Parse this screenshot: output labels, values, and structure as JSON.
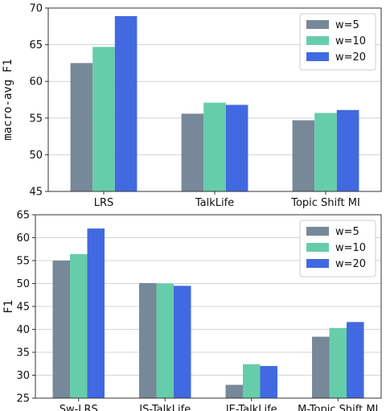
{
  "chart_data": [
    {
      "type": "bar",
      "categories": [
        "LRS",
        "TalkLife",
        "Topic Shift MI"
      ],
      "series": [
        {
          "name": "w=5",
          "color": "#778899",
          "values": [
            62.5,
            55.6,
            54.7
          ]
        },
        {
          "name": "w=10",
          "color": "#66CDAA",
          "values": [
            64.7,
            57.1,
            55.7
          ]
        },
        {
          "name": "w=20",
          "color": "#4169E1",
          "values": [
            68.9,
            56.8,
            56.1
          ]
        }
      ],
      "ylabel": "macro-avg F1",
      "ylim": [
        45,
        70
      ],
      "yticks": [
        45,
        50,
        55,
        60,
        65,
        70
      ],
      "grid": true,
      "legend_position": "top-right"
    },
    {
      "type": "bar",
      "categories": [
        "Sw-LRS",
        "IS-TalkLife",
        "IE-TalkLife",
        "M-Topic Shift MI"
      ],
      "series": [
        {
          "name": "w=5",
          "color": "#778899",
          "values": [
            55.0,
            50.1,
            27.9,
            38.4
          ]
        },
        {
          "name": "w=10",
          "color": "#66CDAA",
          "values": [
            56.4,
            50.0,
            32.4,
            40.3
          ]
        },
        {
          "name": "w=20",
          "color": "#4169E1",
          "values": [
            62.0,
            49.5,
            32.0,
            41.6
          ]
        }
      ],
      "ylabel": "F1",
      "ylim": [
        25,
        65
      ],
      "yticks": [
        25,
        30,
        35,
        40,
        45,
        50,
        55,
        60,
        65
      ],
      "grid": true,
      "legend_position": "top-right"
    }
  ]
}
